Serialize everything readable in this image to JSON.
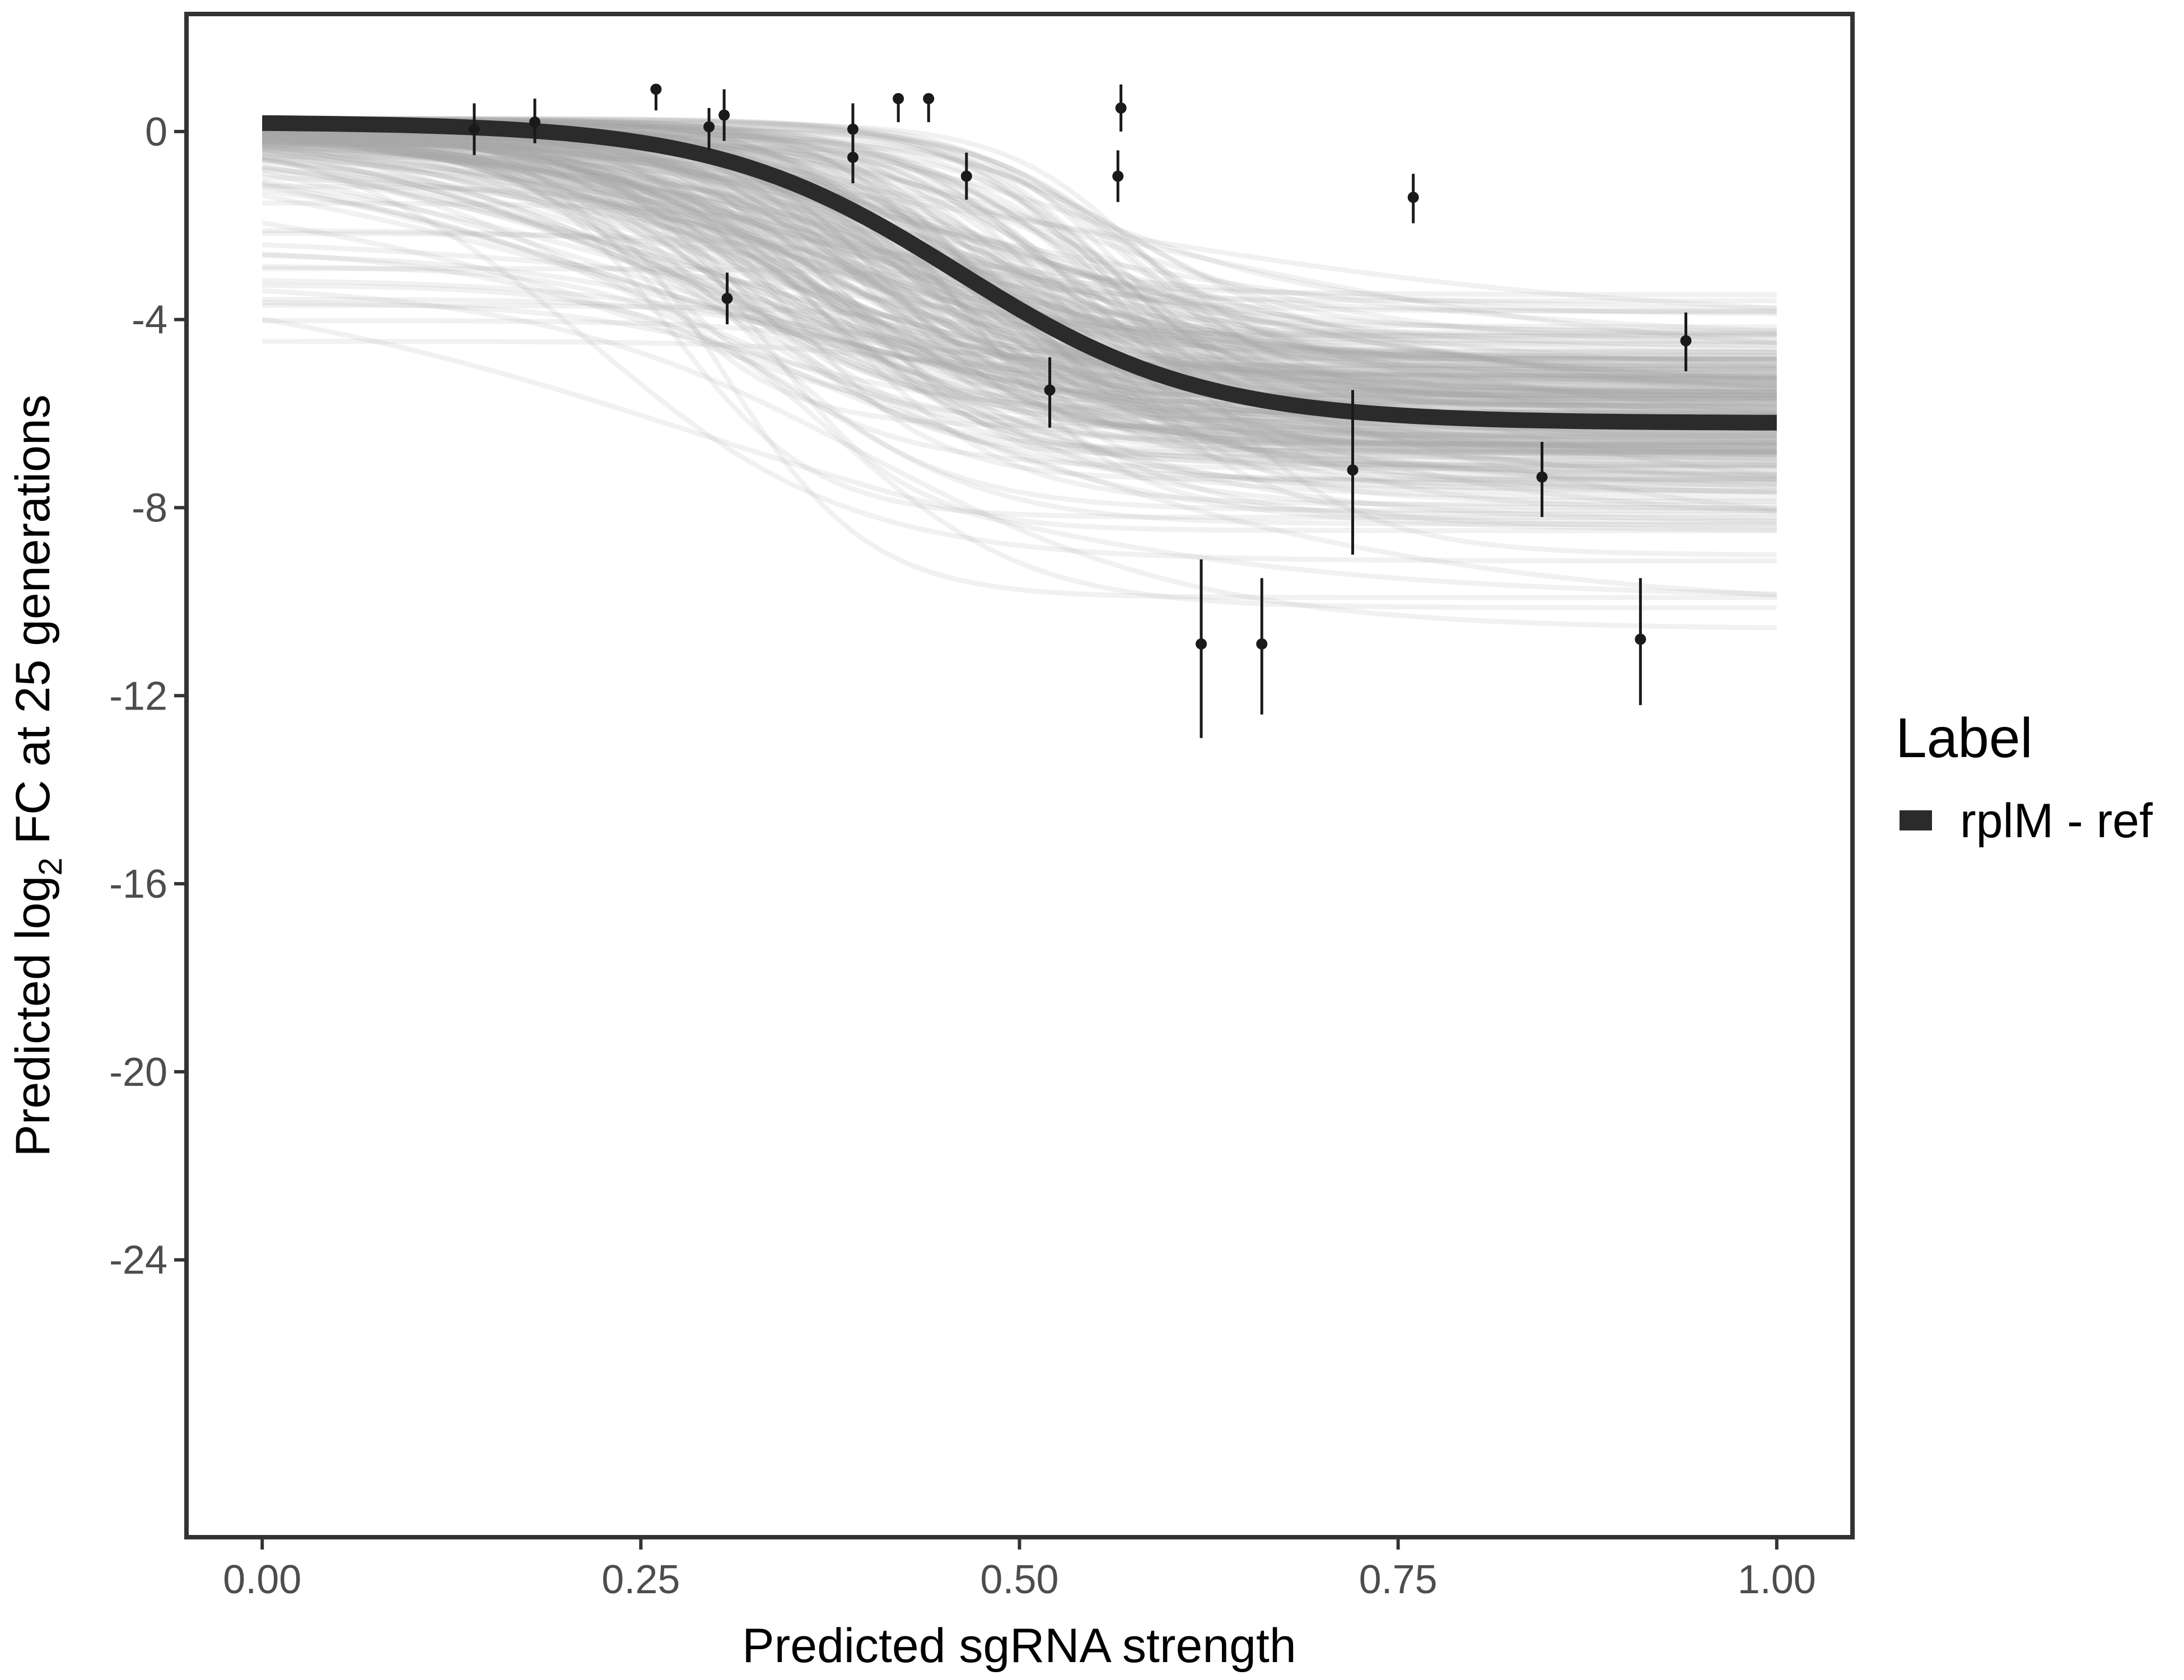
{
  "chart_data": {
    "type": "line",
    "xlabel": "Predicted sgRNA strength",
    "ylabel_prefix": "Predicted  log",
    "ylabel_sub": "2",
    "ylabel_suffix": " FC at 25 generations",
    "xlim": [
      -0.05,
      1.05
    ],
    "ylim": [
      -29.9,
      2.5
    ],
    "x_ticks": [
      0.0,
      0.25,
      0.5,
      0.75,
      1.0
    ],
    "x_tick_labels": [
      "0.00",
      "0.25",
      "0.50",
      "0.75",
      "1.00"
    ],
    "y_ticks": [
      0,
      -4,
      -8,
      -12,
      -16,
      -20,
      -24
    ],
    "y_tick_labels": [
      "0",
      "-4",
      "-8",
      "-12",
      "-16",
      "-20",
      "-24"
    ],
    "grid": false,
    "legend": {
      "title": "Label",
      "placement": "right",
      "entries": [
        {
          "label": "rplM - ref",
          "color": "#2b2b2b"
        }
      ]
    },
    "fit_curve": {
      "name": "rplM - ref",
      "color": "#2b2b2b",
      "upper": 0.2,
      "lower": -6.2,
      "midpoint": 0.46,
      "slope": 12.5
    },
    "posterior_draws": {
      "color": "#a9a9a9",
      "count": 260,
      "upper_range": [
        -4.6,
        0.3
      ],
      "lower_range": [
        -10.8,
        -3.3
      ],
      "midpoint_range": [
        0.2,
        0.62
      ],
      "slope_range": [
        5,
        22
      ]
    },
    "points": [
      {
        "x": 0.14,
        "y": 0.05,
        "ylo": -0.5,
        "yhi": 0.6
      },
      {
        "x": 0.18,
        "y": 0.2,
        "ylo": -0.25,
        "yhi": 0.7
      },
      {
        "x": 0.26,
        "y": 0.9,
        "ylo": 0.45,
        "yhi": 0.9
      },
      {
        "x": 0.295,
        "y": 0.1,
        "ylo": -0.4,
        "yhi": 0.5
      },
      {
        "x": 0.305,
        "y": 0.35,
        "ylo": -0.2,
        "yhi": 0.9
      },
      {
        "x": 0.307,
        "y": -3.55,
        "ylo": -4.1,
        "yhi": -3.0
      },
      {
        "x": 0.39,
        "y": 0.05,
        "ylo": -0.5,
        "yhi": 0.6
      },
      {
        "x": 0.39,
        "y": -0.55,
        "ylo": -1.1,
        "yhi": 0.0
      },
      {
        "x": 0.42,
        "y": 0.7,
        "ylo": 0.2,
        "yhi": 0.7
      },
      {
        "x": 0.44,
        "y": 0.7,
        "ylo": 0.2,
        "yhi": 0.7
      },
      {
        "x": 0.465,
        "y": -0.95,
        "ylo": -1.45,
        "yhi": -0.45
      },
      {
        "x": 0.52,
        "y": -5.5,
        "ylo": -6.3,
        "yhi": -4.8
      },
      {
        "x": 0.565,
        "y": -0.95,
        "ylo": -1.5,
        "yhi": -0.4
      },
      {
        "x": 0.567,
        "y": 0.5,
        "ylo": 0.0,
        "yhi": 1.0
      },
      {
        "x": 0.62,
        "y": -10.9,
        "ylo": -12.9,
        "yhi": -9.1
      },
      {
        "x": 0.66,
        "y": -10.9,
        "ylo": -12.4,
        "yhi": -9.5
      },
      {
        "x": 0.72,
        "y": -7.2,
        "ylo": -9.0,
        "yhi": -5.5
      },
      {
        "x": 0.76,
        "y": -1.4,
        "ylo": -1.95,
        "yhi": -0.9
      },
      {
        "x": 0.845,
        "y": -7.35,
        "ylo": -8.2,
        "yhi": -6.6
      },
      {
        "x": 0.91,
        "y": -10.8,
        "ylo": -12.2,
        "yhi": -9.5
      },
      {
        "x": 0.94,
        "y": -4.45,
        "ylo": -5.1,
        "yhi": -3.85
      }
    ]
  }
}
